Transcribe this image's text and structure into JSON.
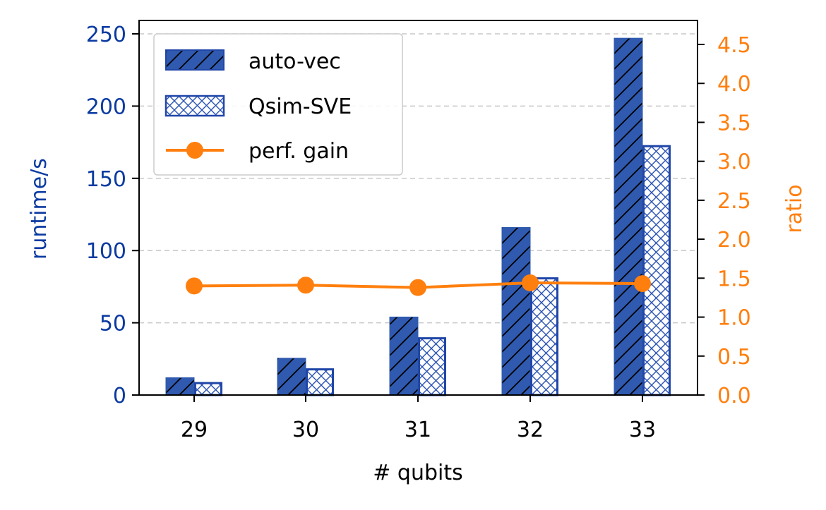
{
  "chart_data": {
    "type": "bar",
    "title": "",
    "xlabel": "# qubits",
    "ylabel": "runtime/s",
    "y2label": "ratio",
    "categories": [
      "29",
      "30",
      "31",
      "32",
      "33"
    ],
    "series": [
      {
        "name": "auto-vec",
        "type": "bar",
        "axis": "left",
        "hatch": "diagonal",
        "values": [
          12,
          25.5,
          54,
          116,
          247
        ]
      },
      {
        "name": "Qsim-SVE",
        "type": "bar",
        "axis": "left",
        "hatch": "cross",
        "values": [
          9,
          18.5,
          40,
          81.5,
          173
        ]
      },
      {
        "name": "perf. gain",
        "type": "line",
        "axis": "right",
        "marker": "circle",
        "values": [
          1.4,
          1.41,
          1.38,
          1.44,
          1.43
        ]
      }
    ],
    "ylim": [
      0,
      260
    ],
    "y_ticks": [
      "0",
      "50",
      "100",
      "150",
      "200",
      "250"
    ],
    "y2lim": [
      0,
      4.83
    ],
    "y2_ticks": [
      "0.0",
      "0.5",
      "1.0",
      "1.5",
      "2.0",
      "2.5",
      "3.0",
      "3.5",
      "4.0",
      "4.5"
    ],
    "grid": "horizontal dashed",
    "legend_position": "top-left",
    "colors": {
      "bar_fill": "#2f5aaf",
      "bar_edge": "#2046a8",
      "left_axis": "#0a3aa0",
      "right_axis": "#ff7f0e",
      "line": "#ff7f0e"
    }
  }
}
